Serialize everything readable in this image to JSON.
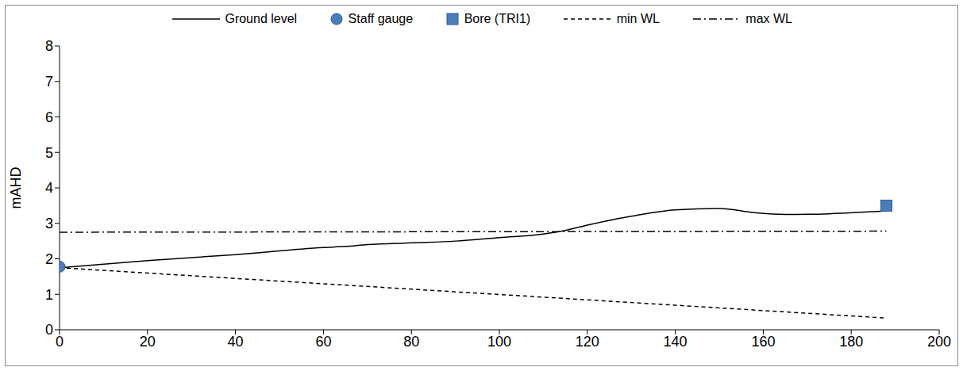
{
  "chart_data": {
    "type": "line",
    "ylabel": "mAHD",
    "xlim": [
      0,
      200
    ],
    "ylim": [
      0,
      8
    ],
    "xticks": [
      0,
      20,
      40,
      60,
      80,
      100,
      120,
      140,
      160,
      180,
      200
    ],
    "yticks": [
      0,
      1,
      2,
      3,
      4,
      5,
      6,
      7,
      8
    ],
    "legend": "top",
    "grid": false,
    "series": [
      {
        "name": "Ground level",
        "type": "line",
        "color": "#000000",
        "line_style": "solid",
        "x": [
          0,
          20,
          40,
          60,
          65,
          70,
          80,
          90,
          100,
          110,
          115,
          120,
          130,
          140,
          150,
          158,
          165,
          175,
          188
        ],
        "values": [
          1.75,
          1.95,
          2.12,
          2.32,
          2.35,
          2.4,
          2.45,
          2.5,
          2.6,
          2.7,
          2.8,
          2.95,
          3.2,
          3.38,
          3.42,
          3.3,
          3.25,
          3.27,
          3.35
        ]
      },
      {
        "name": "Staff gauge",
        "type": "scatter",
        "color": "#4a7ebb",
        "marker": "circle",
        "x": [
          0
        ],
        "values": [
          1.78
        ]
      },
      {
        "name": "Bore (TRI1)",
        "type": "scatter",
        "color": "#4a7ebb",
        "marker": "square",
        "x": [
          188
        ],
        "values": [
          3.5
        ]
      },
      {
        "name": "min WL",
        "type": "line",
        "color": "#000000",
        "line_style": "dashed",
        "x": [
          0,
          188
        ],
        "values": [
          1.75,
          0.33
        ]
      },
      {
        "name": "max WL",
        "type": "line",
        "color": "#000000",
        "line_style": "dashdot",
        "x": [
          0,
          188
        ],
        "values": [
          2.75,
          2.78
        ]
      }
    ]
  }
}
